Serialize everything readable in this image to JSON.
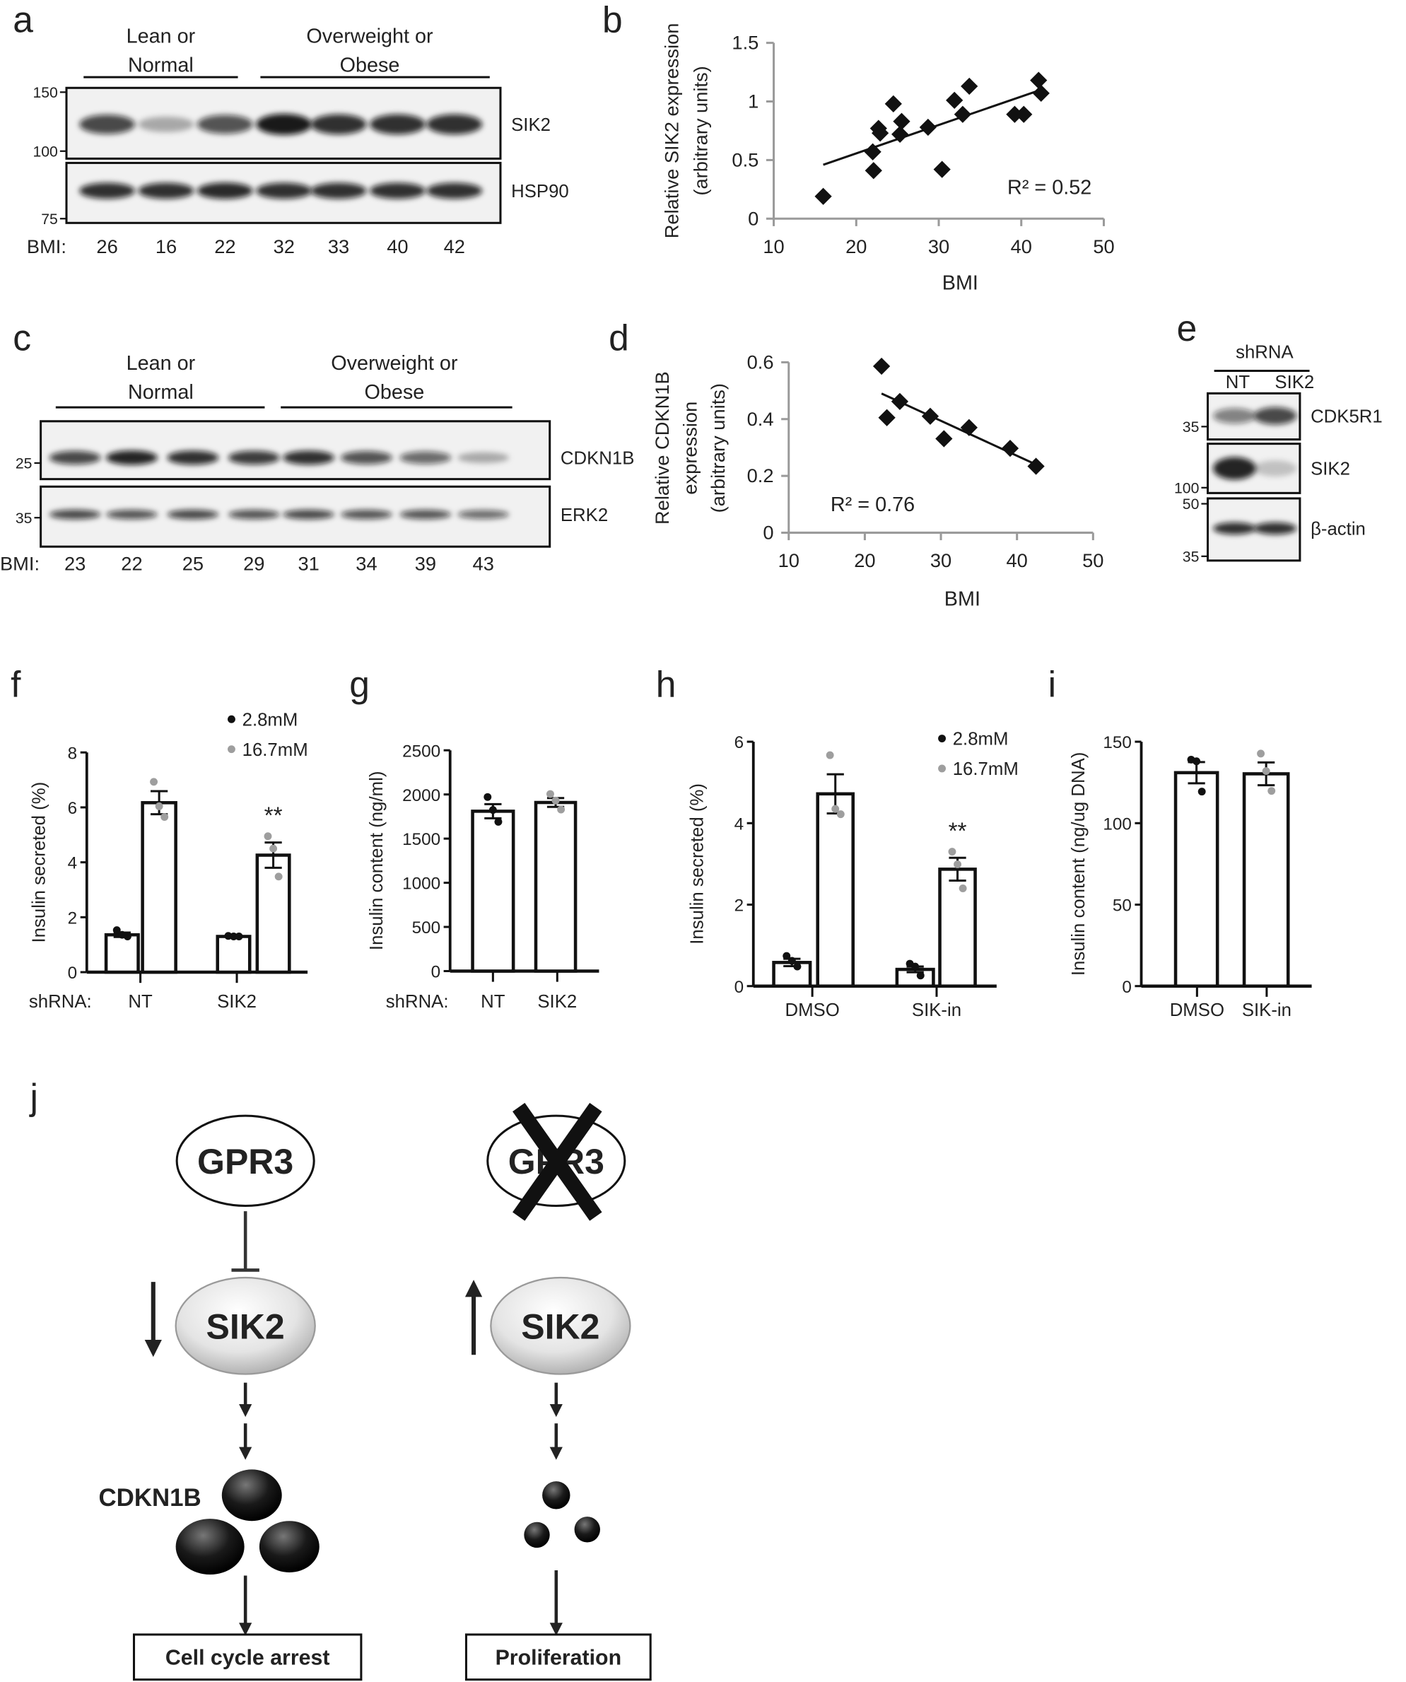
{
  "panels": {
    "a": {
      "letter": "a",
      "groups": [
        [
          "Lean or",
          "Normal"
        ],
        [
          "Overweight or",
          "Obese"
        ]
      ],
      "mw_markers": [
        "150",
        "100",
        "75"
      ],
      "rows": [
        {
          "label": "SIK2",
          "band_intensity": [
            0.75,
            0.3,
            0.7,
            0.95,
            0.85,
            0.85,
            0.85
          ]
        },
        {
          "label": "HSP90",
          "band_intensity": [
            0.85,
            0.85,
            0.88,
            0.85,
            0.85,
            0.85,
            0.85
          ]
        }
      ],
      "bmi_label": "BMI:",
      "bmi": [
        "26",
        "16",
        "22",
        "32",
        "33",
        "40",
        "42"
      ]
    },
    "c": {
      "letter": "c",
      "groups": [
        [
          "Lean or",
          "Normal"
        ],
        [
          "Overweight or",
          "Obese"
        ]
      ],
      "mw_markers": [
        "25",
        "35"
      ],
      "rows": [
        {
          "label": "CDKN1B",
          "band_intensity": [
            0.75,
            0.9,
            0.85,
            0.8,
            0.85,
            0.7,
            0.6,
            0.3
          ]
        },
        {
          "label": "ERK2",
          "band_intensity": [
            0.75,
            0.7,
            0.75,
            0.7,
            0.75,
            0.7,
            0.7,
            0.6
          ]
        }
      ],
      "bmi_label": "BMI:",
      "bmi": [
        "23",
        "22",
        "25",
        "29",
        "31",
        "34",
        "39",
        "43"
      ]
    },
    "e": {
      "letter": "e",
      "header": "shRNA",
      "lanes": [
        "NT",
        "SIK2"
      ],
      "mw_markers": [
        "35",
        "100",
        "50",
        "35"
      ],
      "rows": [
        {
          "label": "CDK5R1",
          "band_intensity": [
            0.5,
            0.75
          ]
        },
        {
          "label": "SIK2",
          "band_intensity": [
            0.9,
            0.2
          ]
        },
        {
          "label": "β-actin",
          "band_intensity": [
            0.85,
            0.85
          ]
        }
      ]
    },
    "b": {
      "letter": "b"
    },
    "d": {
      "letter": "d"
    },
    "f": {
      "letter": "f"
    },
    "g": {
      "letter": "g"
    },
    "h": {
      "letter": "h"
    },
    "i": {
      "letter": "i"
    },
    "j": {
      "letter": "j",
      "left": {
        "receptor": "GPR3",
        "kinase": "SIK2",
        "kinase_change": "down",
        "substrate": "CDKN1B",
        "outcome": "Cell cycle arrest"
      },
      "right": {
        "receptor": "GPR3",
        "receptor_crossed": true,
        "kinase": "SIK2",
        "kinase_change": "up",
        "outcome": "Proliferation"
      }
    }
  },
  "colors": {
    "point_dark": "#111111",
    "point_light": "#9e9e9e",
    "axis_gray": "#9a9a9a"
  },
  "chart_data": [
    {
      "id": "b",
      "type": "scatter",
      "xlabel": "BMI",
      "ylabel": [
        "Relative SIK2 expression",
        "(arbitrary units)"
      ],
      "xlim": [
        10,
        50
      ],
      "ylim": [
        0,
        1.5
      ],
      "xticks": [
        "10",
        "20",
        "30",
        "40",
        "50"
      ],
      "yticks": [
        "0",
        "0.5",
        "1",
        "1.5"
      ],
      "marker": "diamond",
      "points": [
        [
          16.0,
          0.19
        ],
        [
          22.0,
          0.57
        ],
        [
          22.1,
          0.41
        ],
        [
          22.7,
          0.77
        ],
        [
          22.9,
          0.73
        ],
        [
          24.5,
          0.98
        ],
        [
          25.3,
          0.72
        ],
        [
          25.5,
          0.83
        ],
        [
          28.7,
          0.78
        ],
        [
          30.4,
          0.42
        ],
        [
          31.9,
          1.01
        ],
        [
          32.9,
          0.89
        ],
        [
          33.7,
          1.13
        ],
        [
          39.2,
          0.89
        ],
        [
          40.3,
          0.89
        ],
        [
          42.1,
          1.18
        ],
        [
          42.4,
          1.07
        ]
      ],
      "trendline": [
        [
          16.0,
          0.46
        ],
        [
          42.4,
          1.1
        ]
      ],
      "annotation": "R² = 0.52"
    },
    {
      "id": "d",
      "type": "scatter",
      "xlabel": "BMI",
      "ylabel": [
        "Relative CDKN1B",
        "expression",
        "(arbitrary units)"
      ],
      "xlim": [
        10,
        50
      ],
      "ylim": [
        0,
        0.6
      ],
      "xticks": [
        "10",
        "20",
        "30",
        "40",
        "50"
      ],
      "yticks": [
        "0",
        "0.2",
        "0.4",
        "0.6"
      ],
      "marker": "diamond",
      "points": [
        [
          22.2,
          0.586
        ],
        [
          22.9,
          0.405
        ],
        [
          24.6,
          0.462
        ],
        [
          28.6,
          0.41
        ],
        [
          30.4,
          0.331
        ],
        [
          33.7,
          0.37
        ],
        [
          39.1,
          0.297
        ],
        [
          42.5,
          0.234
        ]
      ],
      "trendline": [
        [
          22.2,
          0.49
        ],
        [
          42.5,
          0.24
        ]
      ],
      "annotation": "R² = 0.76"
    },
    {
      "id": "f",
      "type": "bar",
      "ylabel": "Insulin secreted (%)",
      "ylim": [
        0,
        8
      ],
      "yticks": [
        "0",
        "2",
        "4",
        "6",
        "8"
      ],
      "xprefix": "shRNA:",
      "categories": [
        "NT",
        "SIK2"
      ],
      "legend": "top-right",
      "series": [
        {
          "name": "2.8mM",
          "color": "#111111",
          "values": [
            1.36,
            1.3
          ],
          "sem": [
            0.08,
            0.02
          ],
          "points": [
            [
              1.53,
              1.36,
              1.3
            ],
            [
              1.32,
              1.3,
              1.3
            ]
          ]
        },
        {
          "name": "16.7mM",
          "color": "#9e9e9e",
          "values": [
            6.17,
            4.26
          ],
          "sem": [
            0.42,
            0.46
          ],
          "points": [
            [
              6.93,
              6.04,
              5.65
            ],
            [
              4.95,
              4.5,
              3.48
            ]
          ]
        }
      ],
      "annotations": [
        {
          "text": "**",
          "category": 1,
          "series": 1
        }
      ]
    },
    {
      "id": "g",
      "type": "bar",
      "ylabel": "Insulin content (ng/ml)",
      "ylim": [
        0,
        2500
      ],
      "yticks": [
        "0",
        "500",
        "1000",
        "1500",
        "2000",
        "2500"
      ],
      "xprefix": "shRNA:",
      "categories": [
        "NT",
        "SIK2"
      ],
      "series": [
        {
          "values": [
            1810,
            1909
          ],
          "sem": [
            80,
            50
          ],
          "points": [
            [
              1971,
              1824,
              1690
            ],
            [
              2005,
              1931,
              1829
            ]
          ],
          "category_point_colors": [
            "#111111",
            "#9e9e9e"
          ]
        }
      ]
    },
    {
      "id": "h",
      "type": "bar",
      "ylabel": "Insulin secreted (%)",
      "ylim": [
        0,
        6
      ],
      "yticks": [
        "0",
        "2",
        "4",
        "6"
      ],
      "categories": [
        "DMSO",
        "SIK-in"
      ],
      "legend": "top-right",
      "series": [
        {
          "name": "2.8mM",
          "color": "#111111",
          "values": [
            0.58,
            0.41
          ],
          "sem": [
            0.09,
            0.07
          ],
          "points": [
            [
              0.74,
              0.62,
              0.48
            ],
            [
              0.55,
              0.48,
              0.26
            ]
          ]
        },
        {
          "name": "16.7mM",
          "color": "#9e9e9e",
          "values": [
            4.72,
            2.87
          ],
          "sem": [
            0.48,
            0.28
          ],
          "points": [
            [
              5.67,
              4.35,
              4.22
            ],
            [
              3.3,
              2.99,
              2.4
            ]
          ]
        }
      ],
      "annotations": [
        {
          "text": "**",
          "category": 1,
          "series": 1
        }
      ]
    },
    {
      "id": "i",
      "type": "bar",
      "ylabel": "Insulin content (ng/ug DNA)",
      "ylim": [
        0,
        150
      ],
      "yticks": [
        "0",
        "50",
        "100",
        "150"
      ],
      "categories": [
        "DMSO",
        "SIK-in"
      ],
      "series": [
        {
          "values": [
            131,
            130.3
          ],
          "sem": [
            6.5,
            7
          ],
          "points": [
            [
              139,
              138,
              119.4
            ],
            [
              142.7,
              132,
              119.8
            ]
          ],
          "category_point_colors": [
            "#111111",
            "#9e9e9e"
          ]
        }
      ]
    }
  ]
}
